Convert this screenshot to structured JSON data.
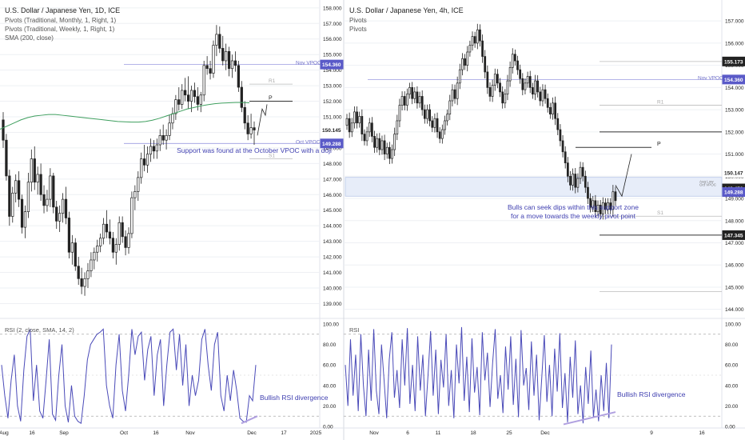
{
  "colors": {
    "candle": "#222222",
    "grid": "#eef0f4",
    "axis_text": "#222222",
    "pivot_gray": "#bbbbbb",
    "vpoc": "#9c9ce0",
    "anno": "#3f3fb0",
    "sma": "#3f9f5f",
    "rsi": "#4a4ab8",
    "rsi_level": "#999999",
    "zone": "#dde6f6",
    "price_badge": "#222222",
    "vpoc_badge": "#5a5ac8"
  },
  "chart_data": [
    {
      "type": "candlestick",
      "title": "U.S. Dollar / Japanese Yen, 1D, ICE",
      "indicators": [
        "Pivots (Traditional, Monthly, 1, Right, 1)",
        "Pivots (Traditional, Weekly, 1, Right, 1)",
        "SMA (200, close)"
      ],
      "x_ticks": [
        "Aug",
        "16",
        "Sep",
        "Oct",
        "16",
        "Nov",
        "Dec",
        "17",
        "2025"
      ],
      "y_ticks": [
        139,
        140,
        141,
        142,
        143,
        144,
        145,
        146,
        147,
        148,
        149,
        150,
        151,
        152,
        153,
        154,
        155,
        156,
        157,
        158
      ],
      "ylim": [
        138.2,
        158.3
      ],
      "price_labels": [
        {
          "text": "154.360",
          "value": 154.36
        },
        {
          "text": "150.145",
          "value": 150.145
        },
        {
          "text": "149.288",
          "value": 149.288
        }
      ],
      "candles": [
        {
          "o": 150.8,
          "h": 151.3,
          "l": 149.0,
          "c": 149.5
        },
        {
          "o": 149.5,
          "h": 149.9,
          "l": 146.9,
          "c": 147.2
        },
        {
          "o": 147.2,
          "h": 147.6,
          "l": 144.0,
          "c": 144.6
        },
        {
          "o": 144.6,
          "h": 146.5,
          "l": 144.2,
          "c": 146.1
        },
        {
          "o": 146.1,
          "h": 147.3,
          "l": 145.5,
          "c": 146.9
        },
        {
          "o": 146.9,
          "h": 147.5,
          "l": 145.2,
          "c": 145.7
        },
        {
          "o": 145.7,
          "h": 146.0,
          "l": 143.5,
          "c": 143.9
        },
        {
          "o": 143.9,
          "h": 145.3,
          "l": 143.2,
          "c": 144.9
        },
        {
          "o": 144.9,
          "h": 147.4,
          "l": 144.5,
          "c": 146.8
        },
        {
          "o": 146.8,
          "h": 148.9,
          "l": 146.2,
          "c": 148.3
        },
        {
          "o": 148.3,
          "h": 149.1,
          "l": 146.3,
          "c": 146.8
        },
        {
          "o": 146.8,
          "h": 147.8,
          "l": 146.0,
          "c": 147.3
        },
        {
          "o": 147.3,
          "h": 148.0,
          "l": 145.6,
          "c": 146.0
        },
        {
          "o": 146.0,
          "h": 146.6,
          "l": 144.8,
          "c": 145.3
        },
        {
          "o": 145.3,
          "h": 146.3,
          "l": 144.9,
          "c": 145.7
        },
        {
          "o": 145.7,
          "h": 147.7,
          "l": 145.2,
          "c": 147.2
        },
        {
          "o": 147.2,
          "h": 147.4,
          "l": 144.8,
          "c": 145.2
        },
        {
          "o": 145.2,
          "h": 145.6,
          "l": 143.8,
          "c": 144.3
        },
        {
          "o": 144.3,
          "h": 145.3,
          "l": 143.6,
          "c": 144.8
        },
        {
          "o": 144.8,
          "h": 146.1,
          "l": 144.2,
          "c": 145.7
        },
        {
          "o": 145.7,
          "h": 146.5,
          "l": 144.1,
          "c": 144.5
        },
        {
          "o": 144.5,
          "h": 144.9,
          "l": 141.9,
          "c": 142.3
        },
        {
          "o": 142.3,
          "h": 143.4,
          "l": 141.5,
          "c": 142.9
        },
        {
          "o": 142.9,
          "h": 143.2,
          "l": 141.1,
          "c": 141.4
        },
        {
          "o": 141.4,
          "h": 142.0,
          "l": 140.2,
          "c": 140.6
        },
        {
          "o": 140.6,
          "h": 141.3,
          "l": 139.6,
          "c": 140.1
        },
        {
          "o": 140.1,
          "h": 141.0,
          "l": 139.5,
          "c": 140.6
        },
        {
          "o": 140.6,
          "h": 141.6,
          "l": 140.0,
          "c": 141.1
        },
        {
          "o": 141.1,
          "h": 142.3,
          "l": 140.7,
          "c": 141.8
        },
        {
          "o": 141.8,
          "h": 142.6,
          "l": 141.2,
          "c": 142.3
        },
        {
          "o": 142.3,
          "h": 143.1,
          "l": 141.7,
          "c": 142.7
        },
        {
          "o": 142.7,
          "h": 143.5,
          "l": 142.3,
          "c": 143.2
        },
        {
          "o": 143.2,
          "h": 144.5,
          "l": 142.8,
          "c": 144.1
        },
        {
          "o": 144.1,
          "h": 145.0,
          "l": 143.2,
          "c": 143.6
        },
        {
          "o": 143.6,
          "h": 144.4,
          "l": 142.8,
          "c": 143.2
        },
        {
          "o": 143.2,
          "h": 143.6,
          "l": 141.9,
          "c": 142.3
        },
        {
          "o": 142.3,
          "h": 143.2,
          "l": 141.5,
          "c": 142.8
        },
        {
          "o": 142.8,
          "h": 144.6,
          "l": 142.4,
          "c": 144.2
        },
        {
          "o": 144.2,
          "h": 144.6,
          "l": 142.9,
          "c": 143.3
        },
        {
          "o": 143.3,
          "h": 143.7,
          "l": 142.1,
          "c": 142.6
        },
        {
          "o": 142.6,
          "h": 143.9,
          "l": 142.2,
          "c": 143.5
        },
        {
          "o": 143.5,
          "h": 146.2,
          "l": 143.2,
          "c": 145.8
        },
        {
          "o": 145.8,
          "h": 146.6,
          "l": 145.0,
          "c": 146.2
        },
        {
          "o": 146.2,
          "h": 147.5,
          "l": 145.6,
          "c": 147.1
        },
        {
          "o": 147.1,
          "h": 148.7,
          "l": 146.7,
          "c": 148.3
        },
        {
          "o": 148.3,
          "h": 149.2,
          "l": 147.5,
          "c": 147.9
        },
        {
          "o": 147.9,
          "h": 149.1,
          "l": 147.4,
          "c": 148.6
        },
        {
          "o": 148.6,
          "h": 149.6,
          "l": 148.1,
          "c": 149.1
        },
        {
          "o": 149.1,
          "h": 149.5,
          "l": 148.3,
          "c": 148.8
        },
        {
          "o": 148.8,
          "h": 149.6,
          "l": 148.3,
          "c": 149.2
        },
        {
          "o": 149.2,
          "h": 150.2,
          "l": 148.8,
          "c": 149.8
        },
        {
          "o": 149.8,
          "h": 150.5,
          "l": 149.2,
          "c": 149.5
        },
        {
          "o": 149.5,
          "h": 150.2,
          "l": 148.9,
          "c": 149.8
        },
        {
          "o": 149.8,
          "h": 151.1,
          "l": 149.5,
          "c": 150.6
        },
        {
          "o": 150.6,
          "h": 151.6,
          "l": 150.2,
          "c": 151.2
        },
        {
          "o": 151.2,
          "h": 152.4,
          "l": 150.8,
          "c": 152.1
        },
        {
          "o": 152.1,
          "h": 152.9,
          "l": 151.4,
          "c": 151.8
        },
        {
          "o": 151.8,
          "h": 153.1,
          "l": 151.5,
          "c": 152.7
        },
        {
          "o": 152.7,
          "h": 153.5,
          "l": 152.0,
          "c": 152.4
        },
        {
          "o": 152.4,
          "h": 153.6,
          "l": 151.5,
          "c": 152.0
        },
        {
          "o": 152.0,
          "h": 153.0,
          "l": 151.3,
          "c": 152.7
        },
        {
          "o": 152.7,
          "h": 153.2,
          "l": 151.9,
          "c": 152.3
        },
        {
          "o": 152.3,
          "h": 152.9,
          "l": 151.4,
          "c": 151.8
        },
        {
          "o": 151.8,
          "h": 152.6,
          "l": 151.3,
          "c": 152.4
        },
        {
          "o": 152.4,
          "h": 154.6,
          "l": 152.0,
          "c": 154.3
        },
        {
          "o": 154.3,
          "h": 154.9,
          "l": 153.7,
          "c": 154.1
        },
        {
          "o": 154.1,
          "h": 154.6,
          "l": 153.4,
          "c": 153.8
        },
        {
          "o": 153.8,
          "h": 155.9,
          "l": 153.5,
          "c": 155.6
        },
        {
          "o": 155.6,
          "h": 156.9,
          "l": 154.9,
          "c": 156.3
        },
        {
          "o": 156.3,
          "h": 156.8,
          "l": 155.1,
          "c": 155.4
        },
        {
          "o": 155.4,
          "h": 156.2,
          "l": 154.3,
          "c": 154.6
        },
        {
          "o": 154.6,
          "h": 155.7,
          "l": 154.0,
          "c": 155.2
        },
        {
          "o": 155.2,
          "h": 155.5,
          "l": 153.6,
          "c": 154.1
        },
        {
          "o": 154.1,
          "h": 155.0,
          "l": 153.5,
          "c": 154.6
        },
        {
          "o": 154.6,
          "h": 155.2,
          "l": 153.9,
          "c": 154.3
        },
        {
          "o": 154.3,
          "h": 154.6,
          "l": 152.6,
          "c": 152.9
        },
        {
          "o": 152.9,
          "h": 153.3,
          "l": 151.3,
          "c": 151.6
        },
        {
          "o": 151.6,
          "h": 152.0,
          "l": 150.2,
          "c": 150.6
        },
        {
          "o": 150.6,
          "h": 151.1,
          "l": 149.5,
          "c": 149.9
        },
        {
          "o": 149.9,
          "h": 151.2,
          "l": 149.6,
          "c": 150.3
        },
        {
          "o": 150.3,
          "h": 150.7,
          "l": 149.2,
          "c": 150.15
        }
      ],
      "sma": [
        150.2,
        150.4,
        150.6,
        150.8,
        150.95,
        151.05,
        151.1,
        151.15,
        151.15,
        151.1,
        151.05,
        151.0,
        150.95,
        150.9,
        150.85,
        150.8,
        150.75,
        150.7,
        150.68,
        150.66,
        150.66,
        150.7,
        150.78,
        150.9,
        151.05,
        151.2,
        151.35,
        151.5,
        151.6,
        151.7,
        151.78,
        151.84,
        151.88,
        151.9,
        151.92,
        151.92,
        151.9
      ],
      "lines": [
        {
          "label": "Nov VPOC",
          "value": 154.36,
          "style": "vpoc"
        },
        {
          "label": "Oct VPOC",
          "value": 149.288,
          "style": "vpoc"
        },
        {
          "label": "R1",
          "value": 153.1,
          "style": "pivot"
        },
        {
          "label": "P",
          "value": 152.0,
          "style": "pivot_main"
        },
        {
          "label": "S1",
          "value": 148.3,
          "style": "pivot"
        }
      ],
      "annotation": "Support was found at the October VPOC with a doji",
      "rsi": {
        "label": "RSI (2, close, SMA, 14, 2)",
        "y_ticks": [
          0,
          20,
          40,
          60,
          80,
          100
        ],
        "tick_labels": [
          "0.00",
          "20.00",
          "40.00",
          "60.00",
          "80.00",
          "100.00"
        ],
        "levels": [
          90,
          10
        ],
        "values": [
          60,
          30,
          8,
          45,
          70,
          20,
          5,
          55,
          88,
          95,
          25,
          60,
          15,
          8,
          45,
          85,
          12,
          6,
          50,
          80,
          20,
          4,
          40,
          10,
          5,
          3,
          30,
          65,
          80,
          85,
          90,
          92,
          95,
          40,
          20,
          8,
          60,
          90,
          35,
          15,
          50,
          95,
          70,
          88,
          92,
          45,
          75,
          88,
          30,
          70,
          85,
          20,
          60,
          92,
          95,
          55,
          90,
          40,
          80,
          20,
          50,
          30,
          45,
          85,
          95,
          60,
          35,
          80,
          92,
          30,
          15,
          50,
          25,
          55,
          35,
          8,
          5,
          4,
          30,
          25,
          60
        ],
        "annotation": "Bullish RSI divergence"
      }
    },
    {
      "type": "candlestick",
      "title": "U.S. Dollar / Japanese Yen, 4h, ICE",
      "indicators": [
        "Pivots",
        "Pivots"
      ],
      "x_ticks": [
        "Nov",
        "6",
        "11",
        "18",
        "25",
        "Dec",
        "9",
        "16"
      ],
      "y_ticks": [
        144,
        145,
        146,
        147,
        148,
        149,
        150,
        151,
        152,
        153,
        154,
        155,
        156,
        157
      ],
      "ylim": [
        143.7,
        157.8
      ],
      "price_labels": [
        {
          "text": "155.173",
          "value": 155.173
        },
        {
          "text": "154.360",
          "value": 154.36
        },
        {
          "text": "150.147",
          "value": 150.147
        },
        {
          "text": "149.450",
          "value": 149.45
        },
        {
          "text": "149.288",
          "value": 149.288
        },
        {
          "text": "147.345",
          "value": 147.345
        }
      ],
      "candles_path": [
        152.3,
        152.6,
        152.0,
        152.4,
        152.9,
        152.4,
        152.7,
        151.9,
        151.6,
        152.0,
        152.4,
        151.8,
        151.3,
        151.7,
        151.2,
        151.6,
        151.0,
        151.3,
        150.8,
        151.2,
        151.9,
        152.5,
        153.2,
        153.6,
        153.2,
        153.7,
        154.0,
        153.5,
        153.8,
        153.3,
        153.6,
        153.0,
        152.6,
        153.0,
        152.5,
        152.2,
        152.6,
        152.0,
        151.7,
        152.1,
        152.5,
        152.8,
        153.4,
        153.9,
        153.5,
        154.2,
        154.8,
        155.3,
        155.0,
        155.6,
        155.9,
        156.3,
        156.0,
        156.6,
        156.1,
        155.4,
        154.7,
        154.0,
        153.6,
        154.1,
        154.6,
        154.2,
        153.8,
        153.3,
        153.7,
        154.3,
        154.9,
        155.5,
        155.2,
        154.8,
        154.4,
        153.9,
        154.2,
        154.5,
        154.0,
        153.7,
        154.3,
        153.8,
        153.4,
        153.9,
        153.5,
        153.1,
        152.8,
        153.3,
        152.6,
        152.1,
        151.6,
        151.1,
        150.6,
        150.0,
        149.6,
        150.1,
        149.5,
        149.9,
        150.4,
        150.0,
        149.5,
        149.0,
        148.6,
        148.9,
        148.4,
        148.7,
        148.3,
        148.8,
        148.5,
        148.8,
        148.5,
        149.3,
        148.9
      ],
      "lines": [
        {
          "label": "Nov VPOC",
          "value": 154.36,
          "style": "vpoc"
        },
        {
          "label": "",
          "value": 155.173,
          "style": "pivot"
        },
        {
          "label": "R1",
          "value": 153.2,
          "style": "pivot"
        },
        {
          "label": "",
          "value": 152.0,
          "style": "pivot_main"
        },
        {
          "label": "P",
          "value": 151.3,
          "style": "pivot_main"
        },
        {
          "label": "S1",
          "value": 148.2,
          "style": "pivot"
        },
        {
          "label": "",
          "value": 147.345,
          "style": "pivot_main"
        },
        {
          "label": "",
          "value": 144.8,
          "style": "pivot"
        }
      ],
      "zone": {
        "from": 149.1,
        "to": 149.95
      },
      "zone_labels": [
        "Aug Low",
        "Oct VPOC"
      ],
      "annotation_lines": [
        "Bulls can seek dips within this support zone",
        "for a move towards the weekly pivot point"
      ],
      "rsi": {
        "label": "RSI",
        "y_ticks": [
          0,
          20,
          40,
          60,
          80,
          100
        ],
        "tick_labels": [
          "0.00",
          "20.00",
          "40.00",
          "60.00",
          "80.00",
          "100.00"
        ],
        "levels": [
          90,
          10
        ],
        "values": [
          60,
          20,
          85,
          30,
          70,
          15,
          90,
          40,
          10,
          75,
          25,
          95,
          35,
          12,
          80,
          45,
          8,
          65,
          92,
          28,
          55,
          18,
          85,
          40,
          96,
          22,
          60,
          15,
          88,
          35,
          70,
          10,
          50,
          93,
          30,
          75,
          12,
          65,
          38,
          90,
          20,
          55,
          8,
          80,
          42,
          97,
          25,
          68,
          14,
          86,
          33,
          58,
          11,
          92,
          45,
          72,
          19,
          62,
          95,
          27,
          50,
          13,
          78,
          36,
          88,
          21,
          66,
          9,
          94,
          40,
          57,
          16,
          83,
          30,
          70,
          6,
          47,
          89,
          24,
          60,
          10,
          76,
          34,
          91,
          18,
          52,
          4,
          68,
          28,
          84,
          12,
          40,
          3,
          58,
          22,
          74,
          9,
          36,
          5,
          50,
          15,
          62,
          8,
          80
        ]
      },
      "rsi_annotation": "Bullish RSI divergence"
    }
  ]
}
